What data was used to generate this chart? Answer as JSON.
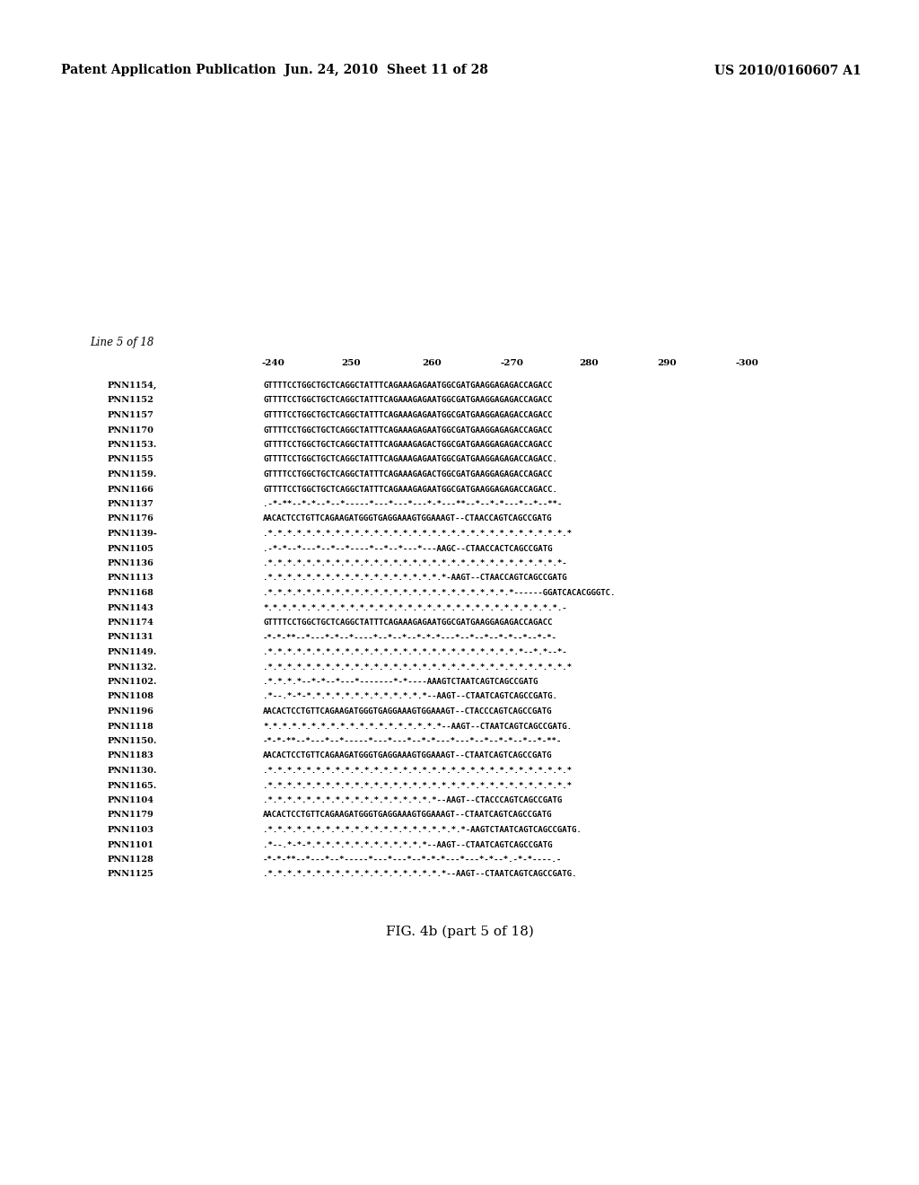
{
  "header_left": "Patent Application Publication",
  "header_center": "Jun. 24, 2010  Sheet 11 of 28",
  "header_right": "US 2010/0160607 A1",
  "line_label": "Line 5 of 18",
  "ruler_text": "  240        250         260        -270         280         290        -300",
  "figure_caption": "FIG. 4b (part 5 of 18)",
  "background_color": "#ffffff",
  "text_color": "#000000",
  "seq_rows": [
    [
      "PNN1154,",
      "GTTTTCCTGGCTGCTCAGGCTATTTCAGAAAGAGAATGGCGATGAAGGAGAGACCAGACC"
    ],
    [
      "PNN1152",
      "GTTTTCCTGGCTGCTCAGGCTATTTCAGAAAGAGAATGGCGATGAAGGAGAGACCAGACC"
    ],
    [
      "PNN1157",
      "GTTTTCCTGGCTGCTCAGGCTATTTCAGAAAGAGAATGGCGATGAAGGAGAGACCAGACC"
    ],
    [
      "PNN1170",
      "GTTTTCCTGGCTGCTCAGGCTATTTCAGAAAGAGAATGGCGATGAAGGAGAGACCAGACC"
    ],
    [
      "PNN1153.",
      "GTTTTCCTGGCTGCTCAGGCTATTTCAGAAAGAGACTGGCGATGAAGGAGAGACCAGACC"
    ],
    [
      "PNN1155",
      "GTTTTCCTGGCTGCTCAGGCTATTTCAGAAAGAGAATGGCGATGAAGGAGAGACCAGACC."
    ],
    [
      "PNN1159.",
      "GTTTTCCTGGCTGCTCAGGCTATTTCAGAAAGAGACTGGCGATGAAGGAGAGACCAGACC"
    ],
    [
      "PNN1166",
      "GTTTTCCTGGCTGCTCAGGCTATTTCAGAAAGAGAATGGCGATGAAGGAGAGACCAGACC."
    ],
    [
      "PNN1137",
      ".-*-**--*-*--*--*-----*---*---*---*-*---**--*--*-*---*--*--**-"
    ],
    [
      "PNN1176",
      "AACACTCCTGTTCAGAAGATGGGTGAGGAAAGTGGAAAGT--CTAACCAGTCAGCCGATG"
    ],
    [
      "PNN1139-",
      ".*.*.*.*.*.*.*.*.*.*.*.*.*.*.*.*.*.*.*.*.*.*.*.*.*.*.*.*.*.*.*.*"
    ],
    [
      "PNN1105",
      ".-*-*--*---*--*--*----*--*--*---*---AAGC--CTAACCACTCAGCCGATG"
    ],
    [
      "PNN1136",
      ".*.*.*.*.*.*.*.*.*.*.*.*.*.*.*.*.*.*.*.*.*.*.*.*.*.*.*.*.*.*.*-"
    ],
    [
      "PNN1113",
      ".*.*.*.*.*.*.*.*.*.*.*.*.*.*.*.*.*.*.*-AAGT--CTAACCAGTCAGCCGATG"
    ],
    [
      "PNN1168",
      ".*.*.*.*.*.*.*.*.*.*.*.*.*.*.*.*.*.*.*.*.*.*.*.*.*.*------GGATCACACGGGTC."
    ],
    [
      "PNN1143",
      "*.*.*.*.*.*.*.*.*.*.*.*.*.*.*.*.*.*.*.*.*.*.*.*.*.*.*.*.*.*.*.-"
    ],
    [
      "PNN1174",
      "GTTTTCCTGGCTGCTCAGGCTATTTCAGAAAGAGAATGGCGATGAAGGAGAGACCAGACC"
    ],
    [
      "PNN1131",
      "-*-*-**--*---*-*--*----*--*--*--*-*-*---*--*--*--*-*--*--*-*-"
    ],
    [
      "PNN1149.",
      ".*.*.*.*.*.*.*.*.*.*.*.*.*.*.*.*.*.*.*.*.*.*.*.*.*.*.*--*.*--*-"
    ],
    [
      "PNN1132.",
      ".*.*.*.*.*.*.*.*.*.*.*.*.*.*.*.*.*.*.*.*.*.*.*.*.*.*.*.*.*.*.*.*"
    ],
    [
      "PNN1102.",
      ".*.*.*.*--*-*--*---*-------*-*----AAAGTCTAATCAGTCAGCCGATG"
    ],
    [
      "PNN1108",
      ".*--.*-*-*.*.*.*.*.*.*.*.*.*.*.*.*--AAGT--CTAATCAGTCAGCCGATG."
    ],
    [
      "PNN1196",
      "AACACTCCTGTTCAGAAGATGGGTGAGGAAAGTGGAAAGT--CTACCCAGTCAGCCGATG"
    ],
    [
      "PNN1118",
      "*.*.*.*.*.*.*.*.*.*.*.*.*.*.*.*.*.*.*--AAGT--CTAATCAGTCAGCCGATG."
    ],
    [
      "PNN1150.",
      "-*-*-**--*---*--*-----*---*---*--*-*---*---*--*--*-*--*--*-**-"
    ],
    [
      "PNN1183",
      "AACACTCCTGTTCAGAAGATGGGTGAGGAAAGTGGAAAGT--CTAATCAGTCAGCCGATG"
    ],
    [
      "PNN1130.",
      ".*.*.*.*.*.*.*.*.*.*.*.*.*.*.*.*.*.*.*.*.*.*.*.*.*.*.*.*.*.*.*.*"
    ],
    [
      "PNN1165.",
      ".*.*.*.*.*.*.*.*.*.*.*.*.*.*.*.*.*.*.*.*.*.*.*.*.*.*.*.*.*.*.*.*"
    ],
    [
      "PNN1104",
      ".*.*.*.*.*.*.*.*.*.*.*.*.*.*.*.*.*.*--AAGT--CTACCCAGTCAGCCGATG"
    ],
    [
      "PNN1179",
      "AACACTCCTGTTCAGAAGATGGGTGAGGAAAGTGGAAAGT--CTAATCAGTCAGCCGATG"
    ],
    [
      "PNN1103",
      ".*.*.*.*.*.*.*.*.*.*.*.*.*.*.*.*.*.*.*.*.*-AAGTCTAATCAGTCAGCCGATG."
    ],
    [
      "PNN1101",
      ".*--.*-*-*.*.*.*.*.*.*.*.*.*.*.*.*--AAGT--CTAATCAGTCAGCCGATG"
    ],
    [
      "PNN1128",
      "-*-*-**--*---*--*-----*---*---*--*-*-*---*---*-*--*.-*-*----.-"
    ],
    [
      "PNN1125",
      ".*.*.*.*.*.*.*.*.*.*.*.*.*.*.*.*.*.*.*--AAGT--CTAATCAGTCAGCCGATG."
    ]
  ]
}
